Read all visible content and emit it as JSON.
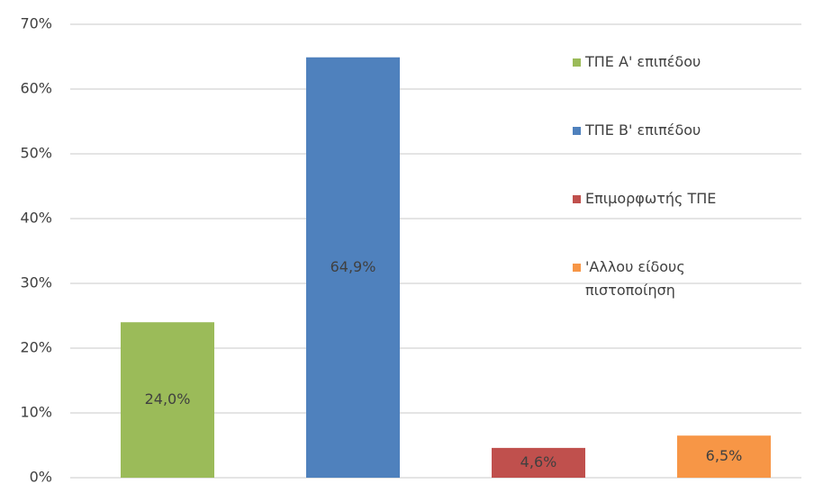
{
  "chart_data": {
    "type": "bar",
    "series": [
      {
        "name": "ΤΠΕ Α' επιπέδου",
        "color": "#9bbb59",
        "values": [
          24.0
        ],
        "value_labels": [
          "24,0%"
        ]
      },
      {
        "name": "ΤΠΕ Β' επιπέδου",
        "color": "#4f81bd",
        "values": [
          64.9
        ],
        "value_labels": [
          "64,9%"
        ]
      },
      {
        "name": "Επιμορφωτής ΤΠΕ",
        "color": "#c0504d",
        "values": [
          4.6
        ],
        "value_labels": [
          "4,6%"
        ]
      },
      {
        "name": "'Αλλου είδους πιστοποίηση",
        "color": "#f79646",
        "values": [
          6.5
        ],
        "value_labels": [
          "6,5%"
        ]
      }
    ],
    "ylim": [
      0,
      70
    ],
    "yticks": [
      {
        "value": 0,
        "label": "0%"
      },
      {
        "value": 10,
        "label": "10%"
      },
      {
        "value": 20,
        "label": "20%"
      },
      {
        "value": 30,
        "label": "30%"
      },
      {
        "value": 40,
        "label": "40%"
      },
      {
        "value": 50,
        "label": "50%"
      },
      {
        "value": 60,
        "label": "60%"
      },
      {
        "value": 70,
        "label": "70%"
      }
    ],
    "grid": true,
    "legend": "right"
  }
}
